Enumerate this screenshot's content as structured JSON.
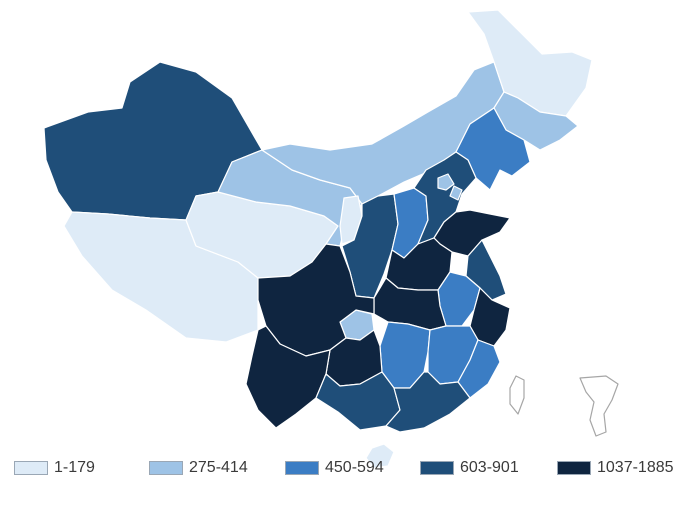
{
  "colors": {
    "bin1": "#deebf7",
    "bin2": "#9ec3e6",
    "bin3": "#3b7dc4",
    "bin4": "#1f4e79",
    "bin5": "#0f2540"
  },
  "legend": [
    {
      "label": "1-179",
      "color": "#deebf7"
    },
    {
      "label": "275-414",
      "color": "#9ec3e6"
    },
    {
      "label": "450-594",
      "color": "#3b7dc4"
    },
    {
      "label": "603-901",
      "color": "#1f4e79"
    },
    {
      "label": "1037-1885",
      "color": "#0f2540"
    }
  ],
  "regions": [
    {
      "name": "xinjiang",
      "bin": 4
    },
    {
      "name": "tibet",
      "bin": 1
    },
    {
      "name": "qinghai",
      "bin": 1
    },
    {
      "name": "gansu",
      "bin": 2
    },
    {
      "name": "inner-mongolia",
      "bin": 2
    },
    {
      "name": "heilongjiang",
      "bin": 1
    },
    {
      "name": "jilin",
      "bin": 2
    },
    {
      "name": "liaoning",
      "bin": 3
    },
    {
      "name": "ningxia",
      "bin": 1
    },
    {
      "name": "shaanxi",
      "bin": 4
    },
    {
      "name": "shanxi",
      "bin": 3
    },
    {
      "name": "hebei",
      "bin": 4
    },
    {
      "name": "beijing",
      "bin": 2
    },
    {
      "name": "tianjin",
      "bin": 2
    },
    {
      "name": "shandong",
      "bin": 5
    },
    {
      "name": "henan",
      "bin": 5
    },
    {
      "name": "jiangsu",
      "bin": 4
    },
    {
      "name": "anhui",
      "bin": 3
    },
    {
      "name": "hubei",
      "bin": 5
    },
    {
      "name": "sichuan",
      "bin": 5
    },
    {
      "name": "chongqing",
      "bin": 2
    },
    {
      "name": "zhejiang",
      "bin": 5
    },
    {
      "name": "hunan",
      "bin": 3
    },
    {
      "name": "jiangxi",
      "bin": 3
    },
    {
      "name": "fujian",
      "bin": 3
    },
    {
      "name": "guizhou",
      "bin": 5
    },
    {
      "name": "yunnan",
      "bin": 5
    },
    {
      "name": "guangxi",
      "bin": 4
    },
    {
      "name": "guangdong",
      "bin": 4
    },
    {
      "name": "hainan",
      "bin": 1
    },
    {
      "name": "taiwan",
      "bin": 0
    },
    {
      "name": "south-china-sea-inset",
      "bin": 0
    }
  ]
}
